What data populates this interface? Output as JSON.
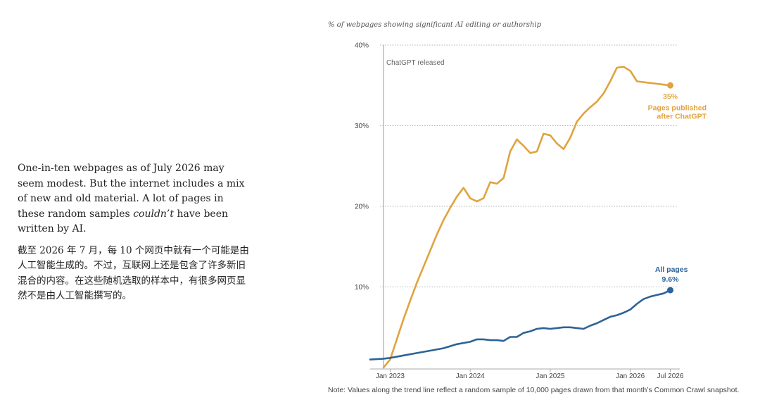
{
  "text": {
    "en_part1": "One-in-ten webpages as of July 2026 may seem modest. But the internet includes a mix of new and old material. A lot of pages in these random samples ",
    "en_emphasis": "couldn’t",
    "en_part2": " have been written by AI.",
    "zh": "截至 2026 年 7 月，每 10 个网页中就有一个可能是由人工智能生成的。不过，互联网上还是包含了许多新旧混合的内容。在这些随机选取的样本中，有很多网页显然不是由人工智能撰写的。"
  },
  "note": "Note: Values along the trend line reflect a random sample of 10,000 pages drawn from that month’s Common Crawl snapshot.",
  "colors": {
    "orange": "#e0a33f",
    "blue": "#2d6396",
    "grid": "#999999",
    "axis": "#aaaaaa"
  },
  "chart_data": {
    "type": "line",
    "title": "% of webpages showing significant AI editing or authorship",
    "xlim": [
      "2022-10",
      "2026-08"
    ],
    "ylim": [
      0,
      40
    ],
    "yticks": [
      10,
      20,
      30,
      40
    ],
    "ytick_labels": [
      "10%",
      "20%",
      "30%",
      "40%"
    ],
    "xticks": [
      "2023-01",
      "2024-01",
      "2025-01",
      "2026-01",
      "2026-07"
    ],
    "xtick_labels": [
      "Jan 2023",
      "Jan 2024",
      "Jan 2025",
      "Jan 2026",
      "Jul 2026"
    ],
    "grid": true,
    "annotation": {
      "x": "2022-12",
      "label": "ChatGPT released"
    },
    "series": [
      {
        "name": "Pages published after ChatGPT",
        "label_lines": [
          "Pages published",
          "after ChatGPT"
        ],
        "end_value_label": "35%",
        "color": "orange",
        "points": [
          [
            "2022-12",
            0
          ],
          [
            "2023-01",
            1
          ],
          [
            "2023-02",
            3.5
          ],
          [
            "2023-03",
            6
          ],
          [
            "2023-04",
            8.3
          ],
          [
            "2023-05",
            10.5
          ],
          [
            "2023-06",
            12.5
          ],
          [
            "2023-07",
            14.5
          ],
          [
            "2023-08",
            16.5
          ],
          [
            "2023-09",
            18.3
          ],
          [
            "2023-10",
            19.8
          ],
          [
            "2023-11",
            21.2
          ],
          [
            "2023-12",
            22.3
          ],
          [
            "2024-01",
            21
          ],
          [
            "2024-02",
            20.6
          ],
          [
            "2024-03",
            21
          ],
          [
            "2024-04",
            23
          ],
          [
            "2024-05",
            22.8
          ],
          [
            "2024-06",
            23.5
          ],
          [
            "2024-07",
            26.8
          ],
          [
            "2024-08",
            28.3
          ],
          [
            "2024-09",
            27.5
          ],
          [
            "2024-10",
            26.6
          ],
          [
            "2024-11",
            26.8
          ],
          [
            "2024-12",
            29
          ],
          [
            "2025-01",
            28.8
          ],
          [
            "2025-02",
            27.8
          ],
          [
            "2025-03",
            27.1
          ],
          [
            "2025-04",
            28.5
          ],
          [
            "2025-05",
            30.5
          ],
          [
            "2025-06",
            31.5
          ],
          [
            "2025-07",
            32.3
          ],
          [
            "2025-08",
            33
          ],
          [
            "2025-09",
            34
          ],
          [
            "2025-10",
            35.5
          ],
          [
            "2025-11",
            37.2
          ],
          [
            "2025-12",
            37.3
          ],
          [
            "2026-01",
            36.8
          ],
          [
            "2026-02",
            35.5
          ],
          [
            "2026-07",
            35
          ]
        ]
      },
      {
        "name": "All pages",
        "label_lines": [
          "All pages"
        ],
        "end_value_label": "9.6%",
        "color": "blue",
        "points": [
          [
            "2022-10",
            1
          ],
          [
            "2022-12",
            1.1
          ],
          [
            "2023-01",
            1.2
          ],
          [
            "2023-03",
            1.5
          ],
          [
            "2023-05",
            1.8
          ],
          [
            "2023-07",
            2.1
          ],
          [
            "2023-09",
            2.4
          ],
          [
            "2023-11",
            2.9
          ],
          [
            "2024-01",
            3.2
          ],
          [
            "2024-02",
            3.5
          ],
          [
            "2024-03",
            3.5
          ],
          [
            "2024-04",
            3.4
          ],
          [
            "2024-05",
            3.4
          ],
          [
            "2024-06",
            3.3
          ],
          [
            "2024-07",
            3.8
          ],
          [
            "2024-08",
            3.8
          ],
          [
            "2024-09",
            4.3
          ],
          [
            "2024-10",
            4.5
          ],
          [
            "2024-11",
            4.8
          ],
          [
            "2024-12",
            4.9
          ],
          [
            "2025-01",
            4.8
          ],
          [
            "2025-02",
            4.9
          ],
          [
            "2025-03",
            5
          ],
          [
            "2025-04",
            5
          ],
          [
            "2025-05",
            4.9
          ],
          [
            "2025-06",
            4.8
          ],
          [
            "2025-07",
            5.2
          ],
          [
            "2025-08",
            5.5
          ],
          [
            "2025-09",
            5.9
          ],
          [
            "2025-10",
            6.3
          ],
          [
            "2025-11",
            6.5
          ],
          [
            "2025-12",
            6.8
          ],
          [
            "2026-01",
            7.2
          ],
          [
            "2026-02",
            7.9
          ],
          [
            "2026-03",
            8.5
          ],
          [
            "2026-04",
            8.8
          ],
          [
            "2026-05",
            9
          ],
          [
            "2026-06",
            9.2
          ],
          [
            "2026-07",
            9.6
          ]
        ]
      }
    ]
  }
}
